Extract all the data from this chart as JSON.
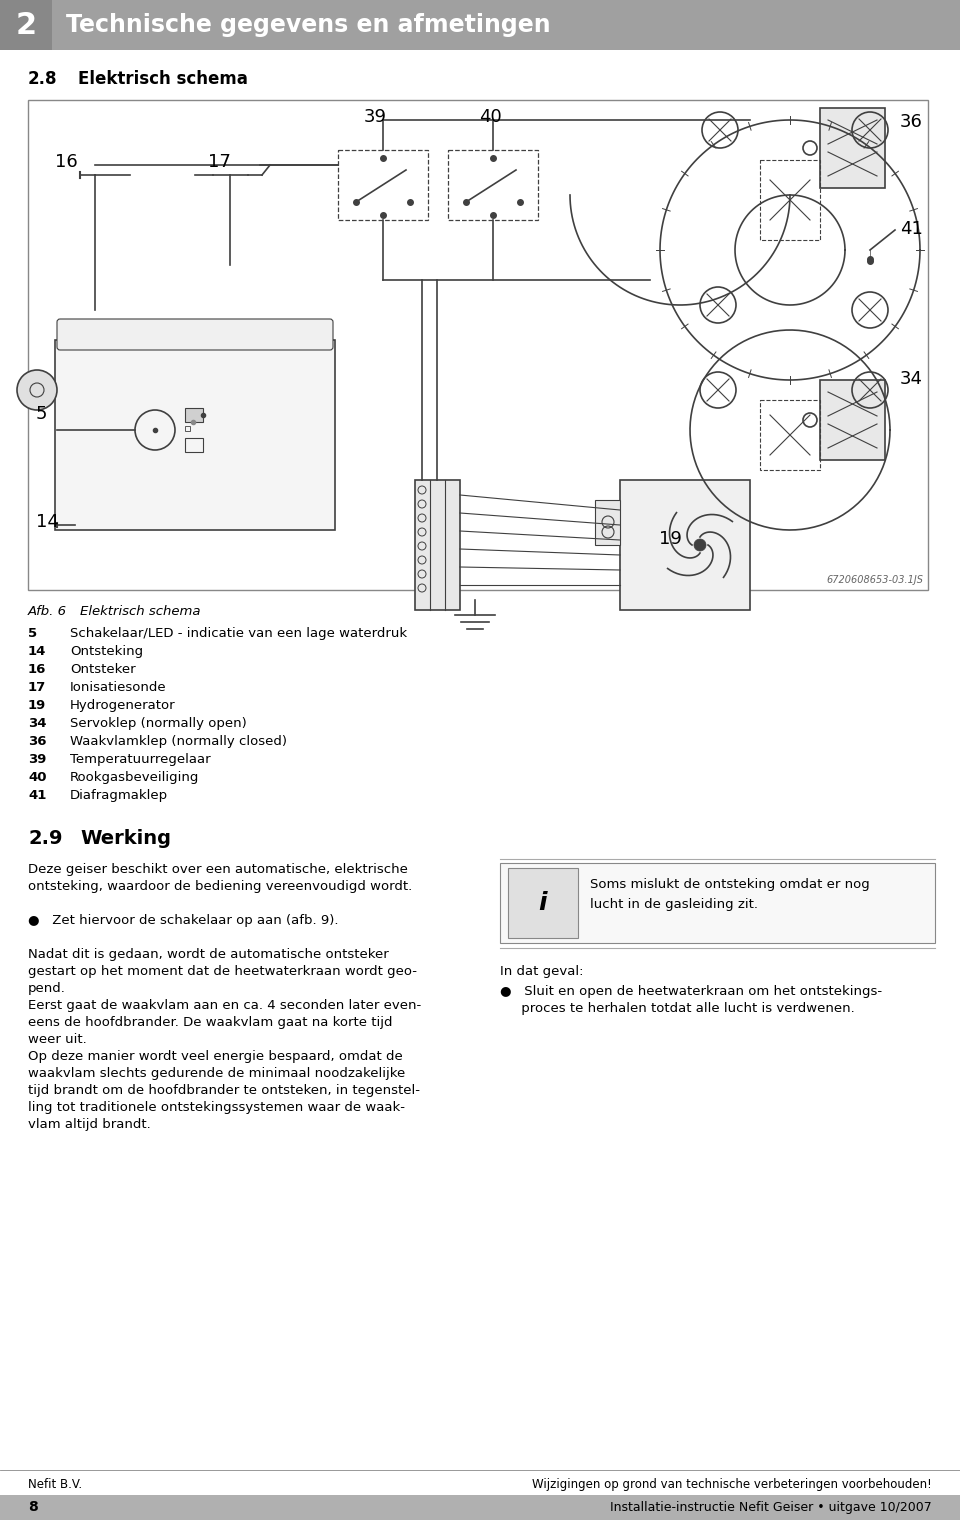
{
  "page_width": 9.6,
  "page_height": 15.2,
  "bg_color": "#ffffff",
  "header_bg": "#a0a0a0",
  "header_number": "2",
  "header_title": "Technische gegevens en afmetingen",
  "header_number_color": "#ffffff",
  "header_title_color": "#ffffff",
  "section_title_28": "2.8",
  "section_title_28b": "Elektrisch schema",
  "diagram_caption": "Afb. 6",
  "diagram_caption2": "Elektrisch schema",
  "diagram_code": "6720608653-03.1JS",
  "legend_items": [
    [
      "5",
      "Schakelaar/LED - indicatie van een lage waterdruk"
    ],
    [
      "14",
      "Ontsteking"
    ],
    [
      "16",
      "Ontsteker"
    ],
    [
      "17",
      "Ionisatiesonde"
    ],
    [
      "19",
      "Hydrogenerator"
    ],
    [
      "34",
      "Servoklep (normally open)"
    ],
    [
      "36",
      "Waakvlamklep (normally closed)"
    ],
    [
      "39",
      "Temperatuurregelaar"
    ],
    [
      "40",
      "Rookgasbeveiliging"
    ],
    [
      "41",
      "Diafragmaklep"
    ]
  ],
  "section_title_29": "2.9",
  "section_title_29b": "Werking",
  "body_lines": [
    "Deze geiser beschikt over een automatische, elektrische",
    "ontsteking, waardoor de bediening vereenvoudigd wordt.",
    "",
    "●   Zet hiervoor de schakelaar op aan (afb. 9).",
    "",
    "Nadat dit is gedaan, wordt de automatische ontsteker",
    "gestart op het moment dat de heetwaterkraan wordt geo-",
    "pend.",
    "Eerst gaat de waakvlam aan en ca. 4 seconden later even-",
    "eens de hoofdbrander. De waakvlam gaat na korte tijd",
    "weer uit.",
    "Op deze manier wordt veel energie bespaard, omdat de",
    "waakvlam slechts gedurende de minimaal noodzakelijke",
    "tijd brandt om de hoofdbrander te ontsteken, in tegenstel-",
    "ling tot traditionele ontstekingssystemen waar de waak-",
    "vlam altijd brandt."
  ],
  "info_box_lines": [
    "Soms mislukt de ontsteking omdat er nog",
    "lucht in de gasleiding zit."
  ],
  "right_col_title": "In dat geval:",
  "right_col_lines": [
    "●   Sluit en open de heetwaterkraan om het ontstekings-",
    "     proces te herhalen totdat alle lucht is verdwenen."
  ],
  "footer_left": "Nefit B.V.",
  "footer_right": "Wijzigingen op grond van technische verbeteringen voorbehouden!",
  "footer_bar_left": "8",
  "footer_bar_right": "Installatie-instructie Nefit Geiser • uitgave 10/2007",
  "line_color": "#404040",
  "diagram_bg": "#ffffff"
}
